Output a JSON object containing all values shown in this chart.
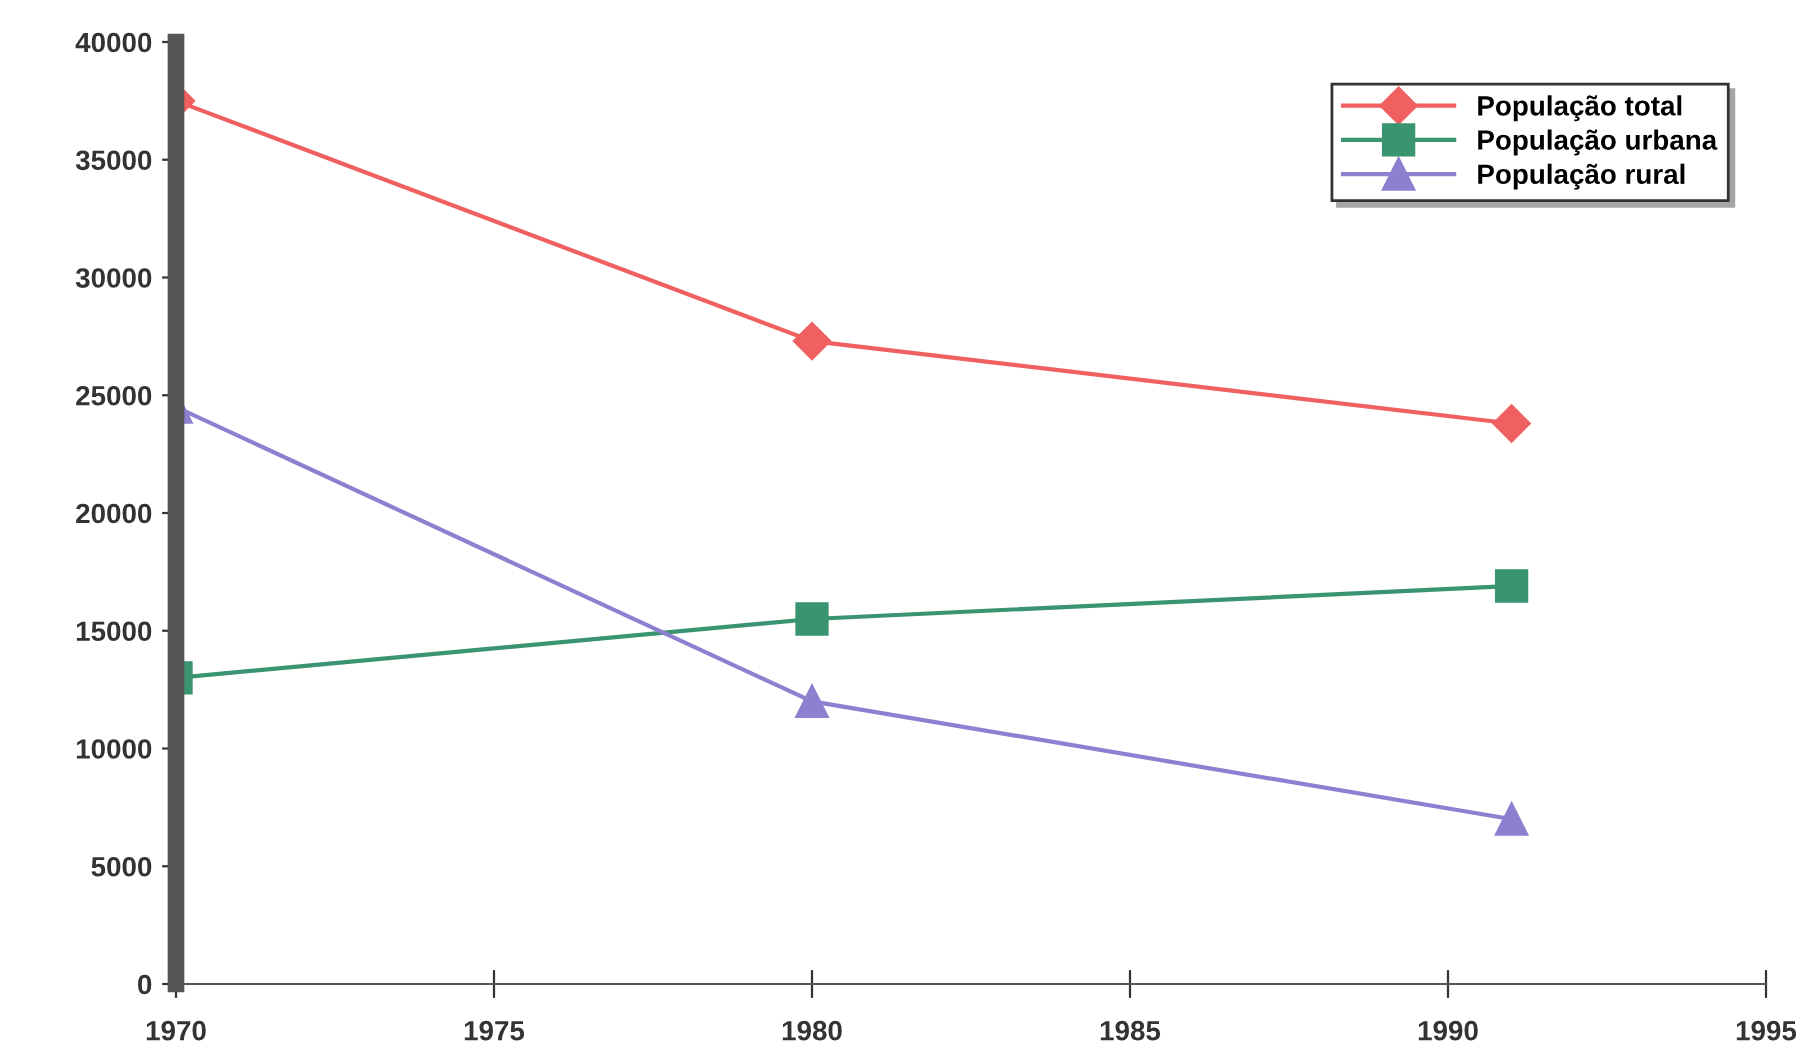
{
  "chart_data": {
    "type": "line",
    "x": [
      1970,
      1980,
      1991
    ],
    "series": [
      {
        "name": "População total",
        "color": "#f06060",
        "marker": "diamond",
        "values": [
          37500,
          27300,
          23800
        ]
      },
      {
        "name": "População urbana",
        "color": "#3a9470",
        "marker": "square",
        "values": [
          13000,
          15500,
          16900
        ]
      },
      {
        "name": "População rural",
        "color": "#8c80d0",
        "marker": "triangle",
        "values": [
          24500,
          12000,
          7000
        ]
      }
    ],
    "xlim": [
      1970,
      1995
    ],
    "xticks": [
      1970,
      1975,
      1980,
      1985,
      1990,
      1995
    ],
    "ylim": [
      0,
      40000
    ],
    "yticks": [
      0,
      5000,
      10000,
      15000,
      20000,
      25000,
      30000,
      35000,
      40000
    ],
    "grid": false,
    "legend": "top right",
    "line_style": "solid"
  }
}
